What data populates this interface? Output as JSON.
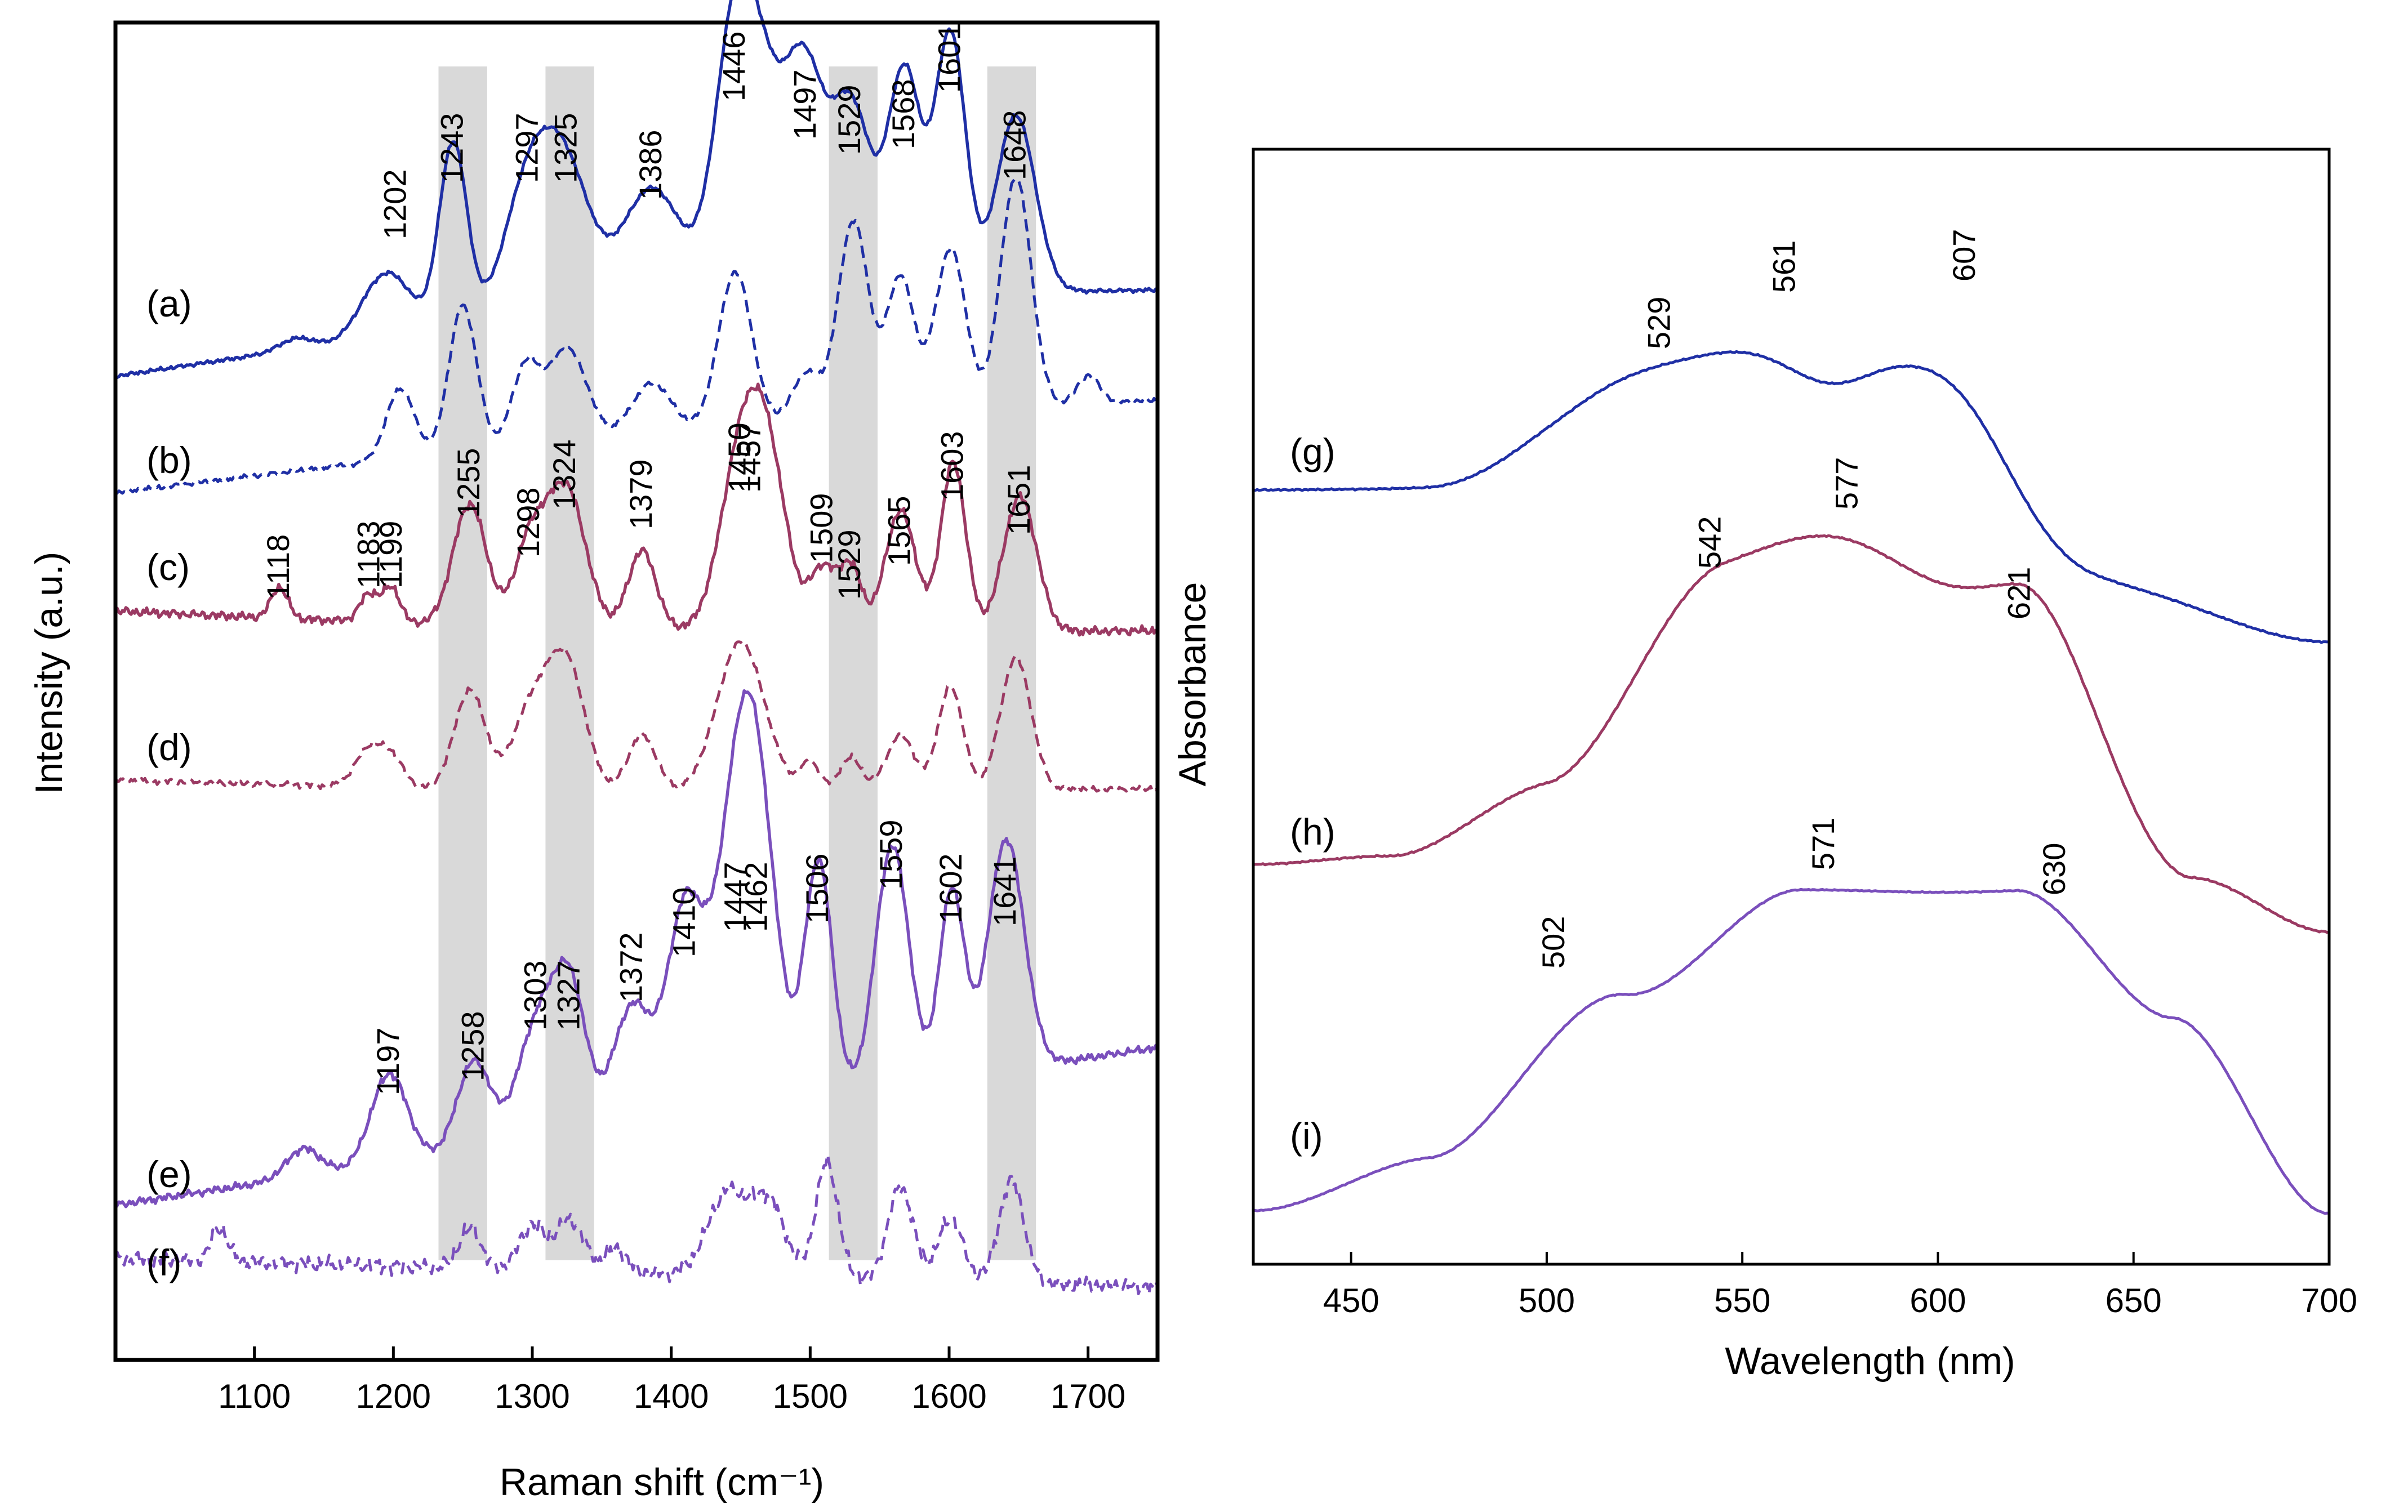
{
  "colors": {
    "blue": "#1f2fa5",
    "red": "#9b3a63",
    "purple": "#7a4fbc",
    "band": "#d9d9d9",
    "axis": "#000000"
  },
  "chart_data": [
    {
      "type": "line",
      "title": "",
      "xlabel": "Raman shift (cm⁻¹)",
      "ylabel": "Intensity (a.u.)",
      "xlim": [
        1000,
        1750
      ],
      "xticks": [
        1100,
        1200,
        1300,
        1400,
        1500,
        1600,
        1700
      ],
      "ytick_labels": false,
      "highlight_bands": [
        {
          "center": 1250,
          "width": 35
        },
        {
          "center": 1327,
          "width": 35
        },
        {
          "center": 1531,
          "width": 35
        },
        {
          "center": 1645,
          "width": 35
        }
      ],
      "series": [
        {
          "label": "(a)",
          "name": "a",
          "style": "solid",
          "color_key": "blue",
          "peaks": [
            1202,
            1243,
            1297,
            1325,
            1386,
            1446,
            1497,
            1529,
            1568,
            1601,
            1648
          ]
        },
        {
          "label": "(b)",
          "name": "b",
          "style": "dashed",
          "color_key": "blue",
          "peaks": []
        },
        {
          "label": "(c)",
          "name": "c",
          "style": "solid",
          "color_key": "red",
          "peaks": [
            1118,
            1183,
            1199,
            1255,
            1298,
            1324,
            1379,
            1450,
            1457,
            1509,
            1529,
            1565,
            1603,
            1651
          ]
        },
        {
          "label": "(d)",
          "name": "d",
          "style": "dashed",
          "color_key": "red",
          "peaks": []
        },
        {
          "label": "(e)",
          "name": "e",
          "style": "solid",
          "color_key": "purple",
          "peaks": [
            1197,
            1258,
            1303,
            1327,
            1372,
            1410,
            1447,
            1462,
            1506,
            1559,
            1602,
            1641
          ]
        },
        {
          "label": "(f)",
          "name": "f",
          "style": "dashed",
          "color_key": "purple",
          "peaks": []
        }
      ]
    },
    {
      "type": "line",
      "title": "",
      "xlabel": "Wavelength (nm)",
      "ylabel": "Absorbance",
      "xlim": [
        425,
        700
      ],
      "xticks": [
        450,
        500,
        550,
        600,
        650,
        700
      ],
      "ytick_labels": false,
      "series": [
        {
          "label": "(g)",
          "name": "g",
          "style": "solid",
          "color_key": "blue",
          "peaks": [
            529,
            561,
            607
          ]
        },
        {
          "label": "(h)",
          "name": "h",
          "style": "solid",
          "color_key": "red",
          "peaks": [
            542,
            577,
            621
          ]
        },
        {
          "label": "(i)",
          "name": "i",
          "style": "solid",
          "color_key": "purple",
          "peaks": [
            502,
            571,
            630
          ]
        }
      ]
    }
  ]
}
